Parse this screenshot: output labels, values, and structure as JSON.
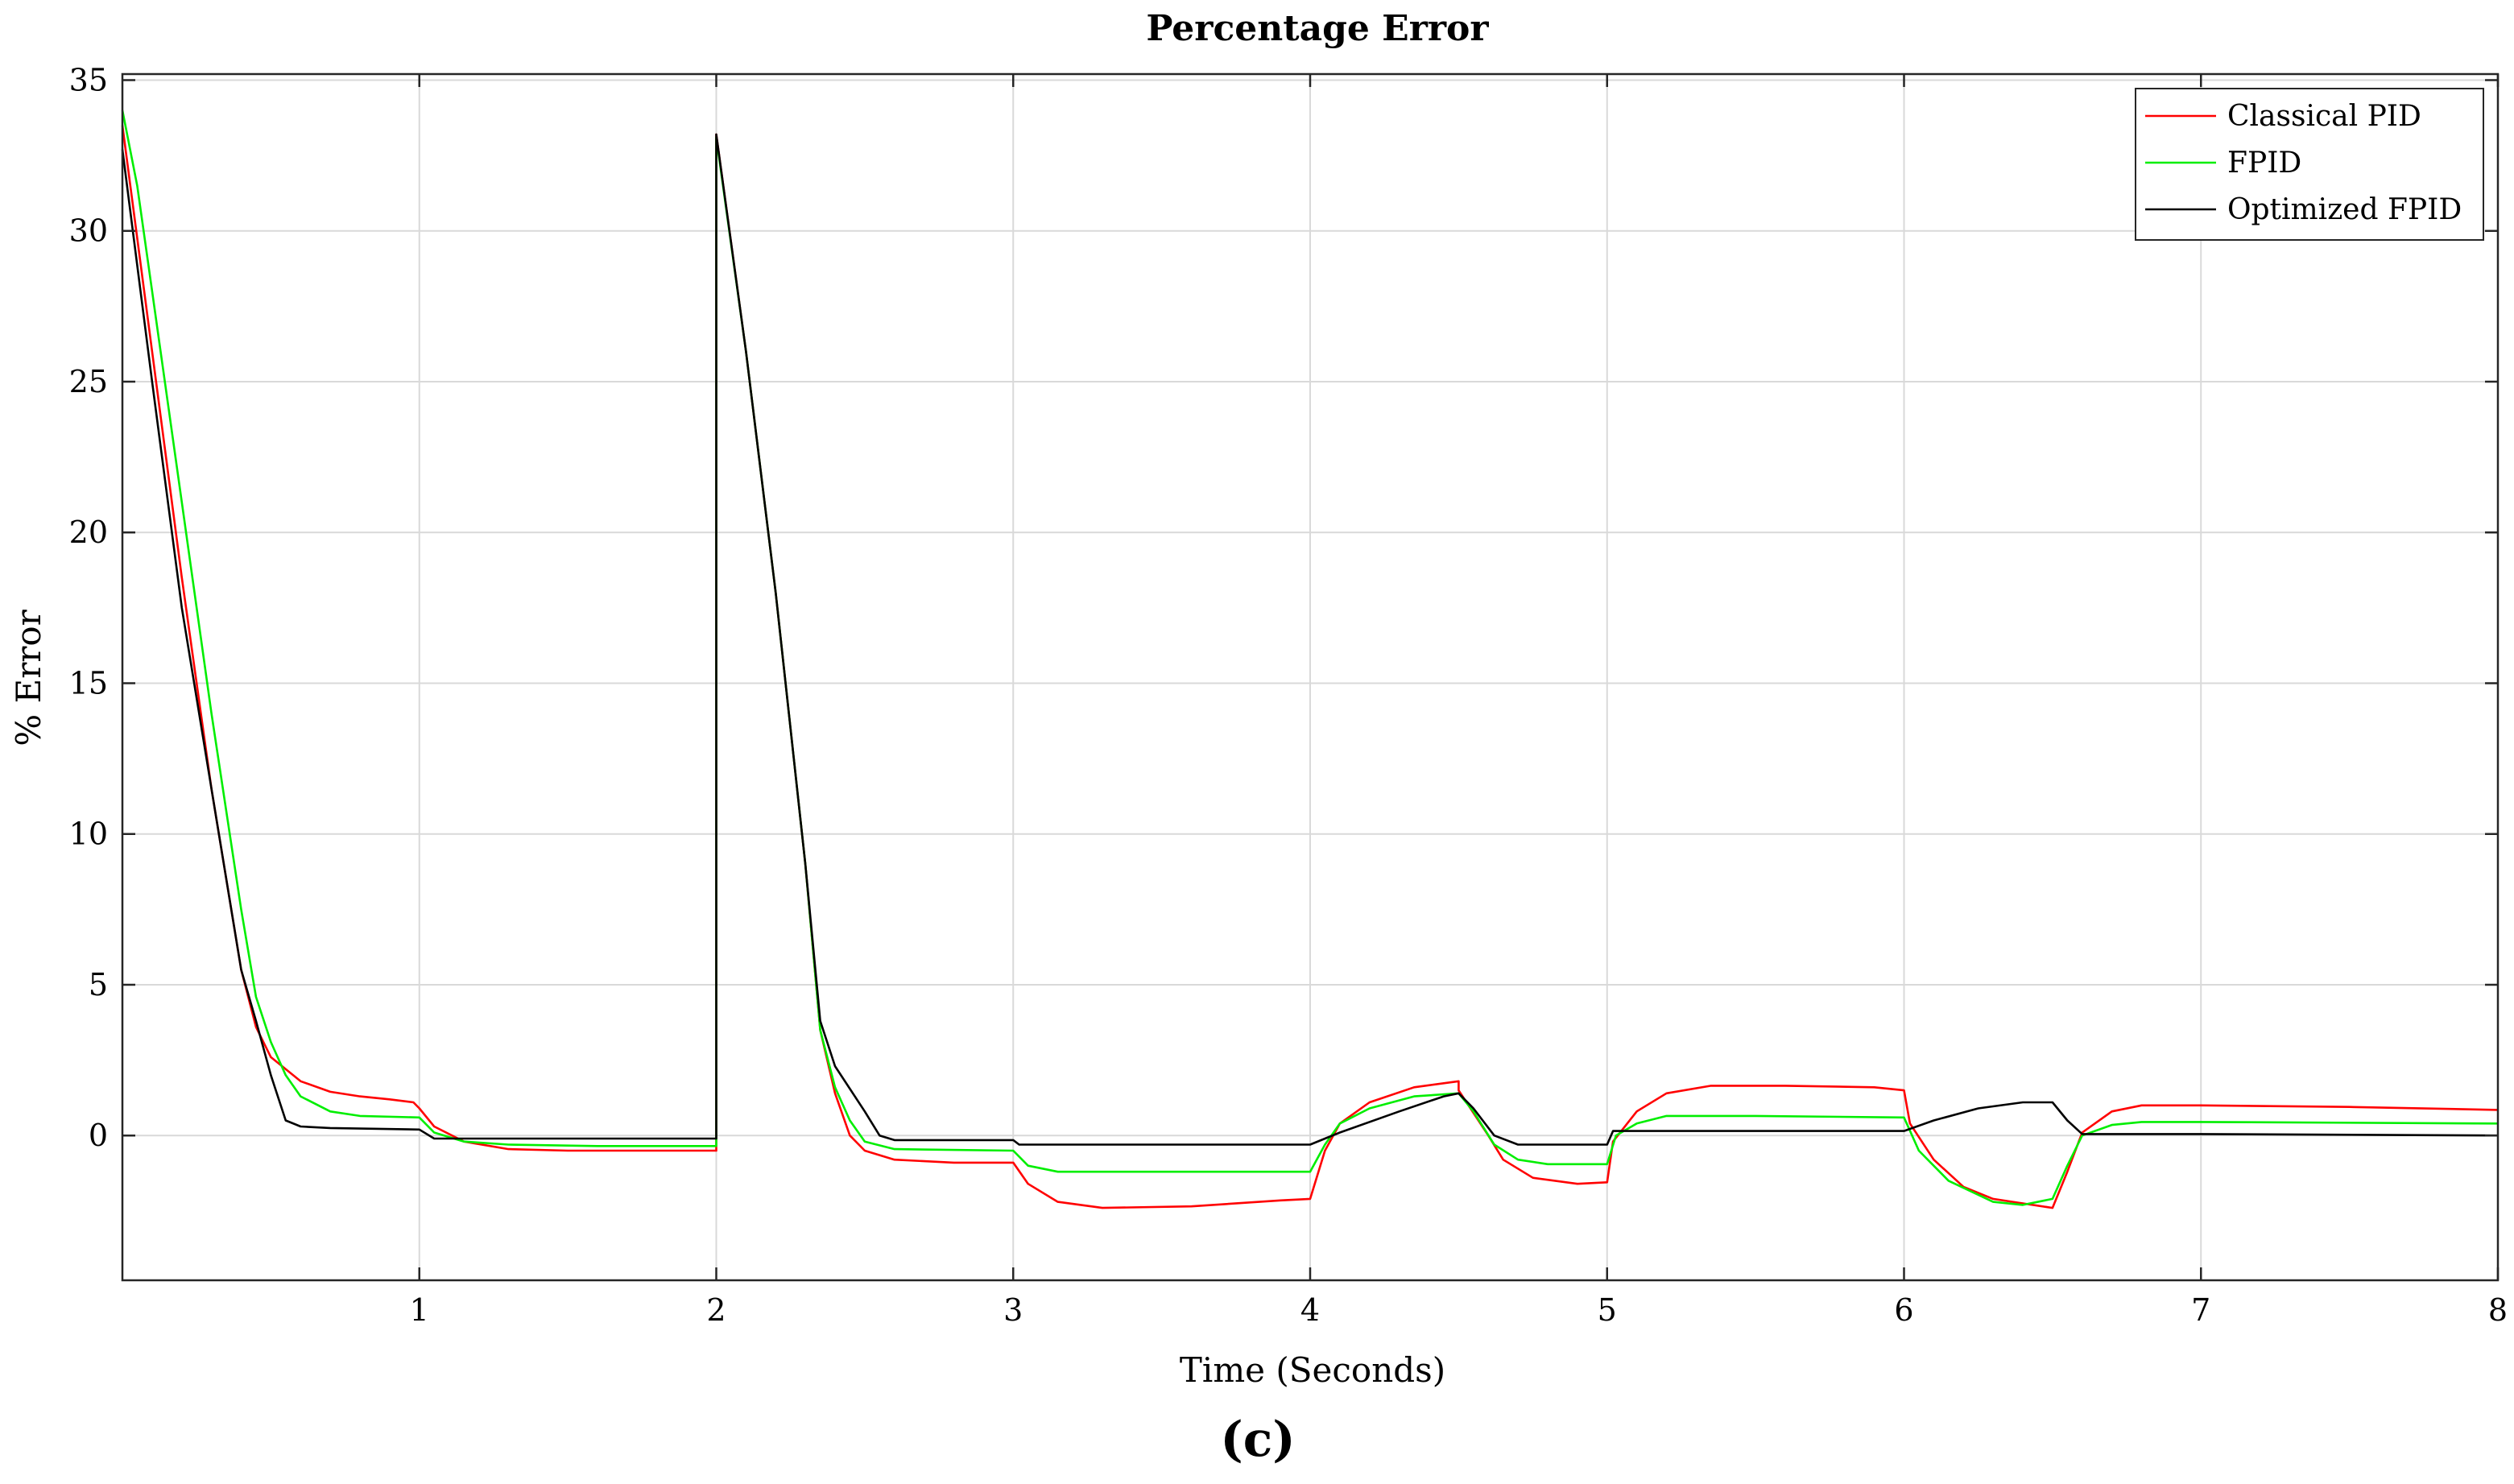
{
  "chart_data": {
    "type": "line",
    "title": "Percentage Error",
    "xlabel": "Time (Seconds)",
    "ylabel": "% Error",
    "caption": "(c)",
    "xlim": [
      0,
      8
    ],
    "ylim": [
      -4.8,
      35.2
    ],
    "xticks": [
      1,
      2,
      3,
      4,
      5,
      6,
      7,
      8
    ],
    "yticks": [
      0,
      5,
      10,
      15,
      20,
      25,
      30,
      35
    ],
    "grid": true,
    "legend_position": "top-right",
    "series": [
      {
        "name": "Classical PID",
        "color": "#ff0000",
        "points": [
          [
            0,
            33.5
          ],
          [
            0.1,
            26
          ],
          [
            0.2,
            18.5
          ],
          [
            0.3,
            11.5
          ],
          [
            0.4,
            5.5
          ],
          [
            0.45,
            3.6
          ],
          [
            0.5,
            2.6
          ],
          [
            0.6,
            1.8
          ],
          [
            0.7,
            1.45
          ],
          [
            0.8,
            1.3
          ],
          [
            0.9,
            1.2
          ],
          [
            0.98,
            1.1
          ],
          [
            1.0,
            0.9
          ],
          [
            1.05,
            0.3
          ],
          [
            1.15,
            -0.2
          ],
          [
            1.3,
            -0.45
          ],
          [
            1.5,
            -0.5
          ],
          [
            1.8,
            -0.5
          ],
          [
            2.0,
            -0.5
          ],
          [
            2.0,
            33.2
          ],
          [
            2.1,
            26
          ],
          [
            2.2,
            18
          ],
          [
            2.3,
            9
          ],
          [
            2.35,
            3.5
          ],
          [
            2.4,
            1.4
          ],
          [
            2.45,
            0
          ],
          [
            2.5,
            -0.5
          ],
          [
            2.6,
            -0.8
          ],
          [
            2.8,
            -0.9
          ],
          [
            3.0,
            -0.9
          ],
          [
            3.05,
            -1.6
          ],
          [
            3.15,
            -2.2
          ],
          [
            3.3,
            -2.4
          ],
          [
            3.6,
            -2.35
          ],
          [
            3.9,
            -2.15
          ],
          [
            4.0,
            -2.1
          ],
          [
            4.05,
            -0.5
          ],
          [
            4.1,
            0.4
          ],
          [
            4.2,
            1.1
          ],
          [
            4.35,
            1.6
          ],
          [
            4.5,
            1.8
          ],
          [
            4.5,
            1.5
          ],
          [
            4.6,
            0
          ],
          [
            4.65,
            -0.8
          ],
          [
            4.75,
            -1.4
          ],
          [
            4.9,
            -1.6
          ],
          [
            5.0,
            -1.55
          ],
          [
            5.02,
            -0.2
          ],
          [
            5.1,
            0.8
          ],
          [
            5.2,
            1.4
          ],
          [
            5.35,
            1.65
          ],
          [
            5.6,
            1.65
          ],
          [
            5.9,
            1.6
          ],
          [
            6.0,
            1.5
          ],
          [
            6.02,
            0.4
          ],
          [
            6.1,
            -0.8
          ],
          [
            6.2,
            -1.7
          ],
          [
            6.3,
            -2.1
          ],
          [
            6.5,
            -2.4
          ],
          [
            6.55,
            -1.2
          ],
          [
            6.6,
            0.1
          ],
          [
            6.7,
            0.8
          ],
          [
            6.8,
            1.0
          ],
          [
            7.0,
            1.0
          ],
          [
            7.5,
            0.95
          ],
          [
            8.0,
            0.85
          ]
        ]
      },
      {
        "name": "FPID",
        "color": "#00ee00",
        "points": [
          [
            0,
            34.0
          ],
          [
            0.05,
            31.5
          ],
          [
            0.1,
            28
          ],
          [
            0.2,
            21
          ],
          [
            0.3,
            14
          ],
          [
            0.4,
            7.5
          ],
          [
            0.45,
            4.6
          ],
          [
            0.5,
            3.1
          ],
          [
            0.55,
            2.0
          ],
          [
            0.6,
            1.3
          ],
          [
            0.7,
            0.8
          ],
          [
            0.8,
            0.65
          ],
          [
            1.0,
            0.6
          ],
          [
            1.05,
            0.1
          ],
          [
            1.15,
            -0.2
          ],
          [
            1.3,
            -0.3
          ],
          [
            1.6,
            -0.35
          ],
          [
            2.0,
            -0.35
          ],
          [
            2.0,
            33.1
          ],
          [
            2.1,
            26
          ],
          [
            2.2,
            18
          ],
          [
            2.3,
            9
          ],
          [
            2.35,
            3.5
          ],
          [
            2.4,
            1.6
          ],
          [
            2.45,
            0.5
          ],
          [
            2.5,
            -0.2
          ],
          [
            2.6,
            -0.45
          ],
          [
            3.0,
            -0.5
          ],
          [
            3.05,
            -1.0
          ],
          [
            3.15,
            -1.2
          ],
          [
            3.5,
            -1.2
          ],
          [
            4.0,
            -1.2
          ],
          [
            4.05,
            -0.3
          ],
          [
            4.1,
            0.4
          ],
          [
            4.2,
            0.9
          ],
          [
            4.35,
            1.3
          ],
          [
            4.5,
            1.4
          ],
          [
            4.55,
            0.8
          ],
          [
            4.62,
            -0.3
          ],
          [
            4.7,
            -0.8
          ],
          [
            4.8,
            -0.95
          ],
          [
            5.0,
            -0.95
          ],
          [
            5.03,
            0
          ],
          [
            5.1,
            0.4
          ],
          [
            5.2,
            0.65
          ],
          [
            5.5,
            0.65
          ],
          [
            6.0,
            0.6
          ],
          [
            6.05,
            -0.5
          ],
          [
            6.15,
            -1.5
          ],
          [
            6.3,
            -2.2
          ],
          [
            6.4,
            -2.3
          ],
          [
            6.5,
            -2.1
          ],
          [
            6.55,
            -1.0
          ],
          [
            6.6,
            0
          ],
          [
            6.7,
            0.35
          ],
          [
            6.8,
            0.45
          ],
          [
            7.0,
            0.45
          ],
          [
            8.0,
            0.4
          ]
        ]
      },
      {
        "name": "Optimized FPID",
        "color": "#000000",
        "points": [
          [
            0,
            32.7
          ],
          [
            0.1,
            25
          ],
          [
            0.2,
            17.5
          ],
          [
            0.3,
            11.5
          ],
          [
            0.4,
            5.5
          ],
          [
            0.45,
            3.8
          ],
          [
            0.5,
            2.0
          ],
          [
            0.55,
            0.5
          ],
          [
            0.6,
            0.3
          ],
          [
            0.7,
            0.25
          ],
          [
            1.0,
            0.2
          ],
          [
            1.05,
            -0.1
          ],
          [
            1.2,
            -0.1
          ],
          [
            2.0,
            -0.1
          ],
          [
            2.0,
            33.2
          ],
          [
            2.1,
            26
          ],
          [
            2.2,
            18
          ],
          [
            2.3,
            9
          ],
          [
            2.35,
            3.8
          ],
          [
            2.4,
            2.3
          ],
          [
            2.5,
            0.8
          ],
          [
            2.55,
            0
          ],
          [
            2.6,
            -0.15
          ],
          [
            3.0,
            -0.15
          ],
          [
            3.02,
            -0.3
          ],
          [
            3.5,
            -0.3
          ],
          [
            4.0,
            -0.3
          ],
          [
            4.1,
            0.1
          ],
          [
            4.3,
            0.8
          ],
          [
            4.45,
            1.3
          ],
          [
            4.5,
            1.4
          ],
          [
            4.55,
            0.9
          ],
          [
            4.62,
            0
          ],
          [
            4.7,
            -0.3
          ],
          [
            5.0,
            -0.3
          ],
          [
            5.02,
            0.15
          ],
          [
            5.5,
            0.15
          ],
          [
            6.0,
            0.15
          ],
          [
            6.1,
            0.5
          ],
          [
            6.25,
            0.9
          ],
          [
            6.4,
            1.1
          ],
          [
            6.5,
            1.1
          ],
          [
            6.55,
            0.5
          ],
          [
            6.6,
            0.05
          ],
          [
            7.0,
            0.05
          ],
          [
            8.0,
            0.0
          ]
        ]
      }
    ]
  }
}
